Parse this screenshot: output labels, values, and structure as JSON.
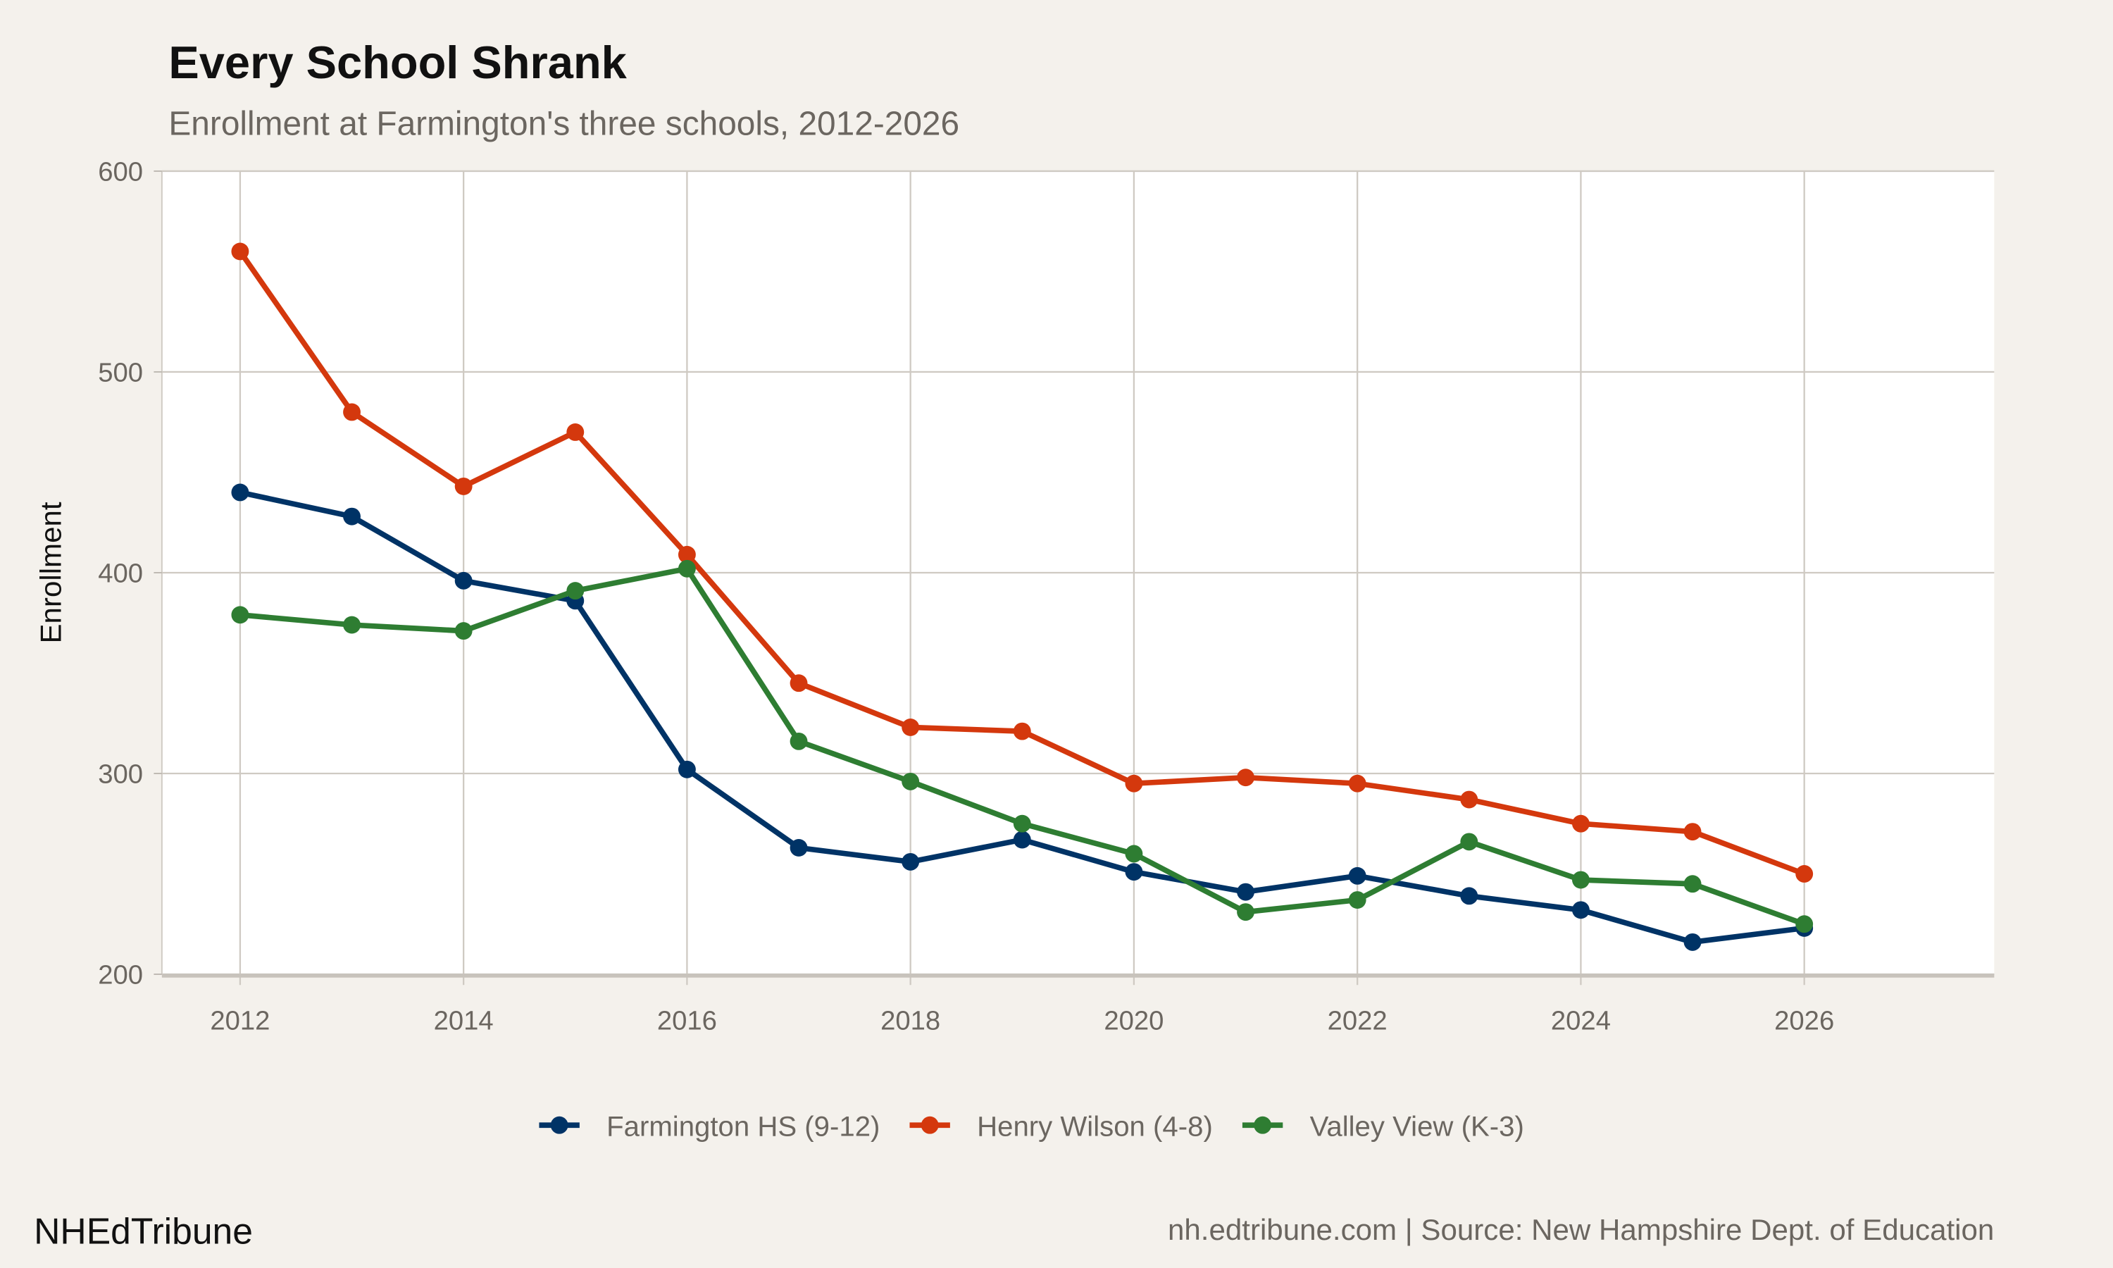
{
  "brand": "NHEdTribune",
  "source": "nh.edtribune.com | Source: New Hampshire Dept. of Education",
  "chart_data": {
    "type": "line",
    "title": "Every School Shrank",
    "subtitle": "Enrollment at Farmington's three schools, 2012-2026",
    "xlabel": "",
    "ylabel": "Enrollment",
    "xlim": [
      2011.3,
      2027.7
    ],
    "ylim": [
      200,
      600
    ],
    "xticks": [
      2012,
      2014,
      2016,
      2018,
      2020,
      2022,
      2024,
      2026
    ],
    "yticks": [
      200,
      300,
      400,
      500,
      600
    ],
    "grid": true,
    "legend": "bottom",
    "x": [
      2012,
      2013,
      2014,
      2015,
      2016,
      2017,
      2018,
      2019,
      2020,
      2021,
      2022,
      2023,
      2024,
      2025,
      2026
    ],
    "series": [
      {
        "name": "Farmington HS (9-12)",
        "color": "#003366",
        "values": [
          440,
          428,
          396,
          386,
          302,
          263,
          256,
          267,
          251,
          241,
          249,
          239,
          232,
          216,
          223
        ]
      },
      {
        "name": "Henry Wilson (4-8)",
        "color": "#d4380d",
        "values": [
          560,
          480,
          443,
          470,
          409,
          345,
          323,
          321,
          295,
          298,
          295,
          287,
          275,
          271,
          250
        ]
      },
      {
        "name": "Valley View (K-3)",
        "color": "#2e7d32",
        "values": [
          379,
          374,
          371,
          391,
          402,
          316,
          296,
          275,
          260,
          231,
          237,
          266,
          247,
          245,
          225
        ]
      }
    ]
  }
}
